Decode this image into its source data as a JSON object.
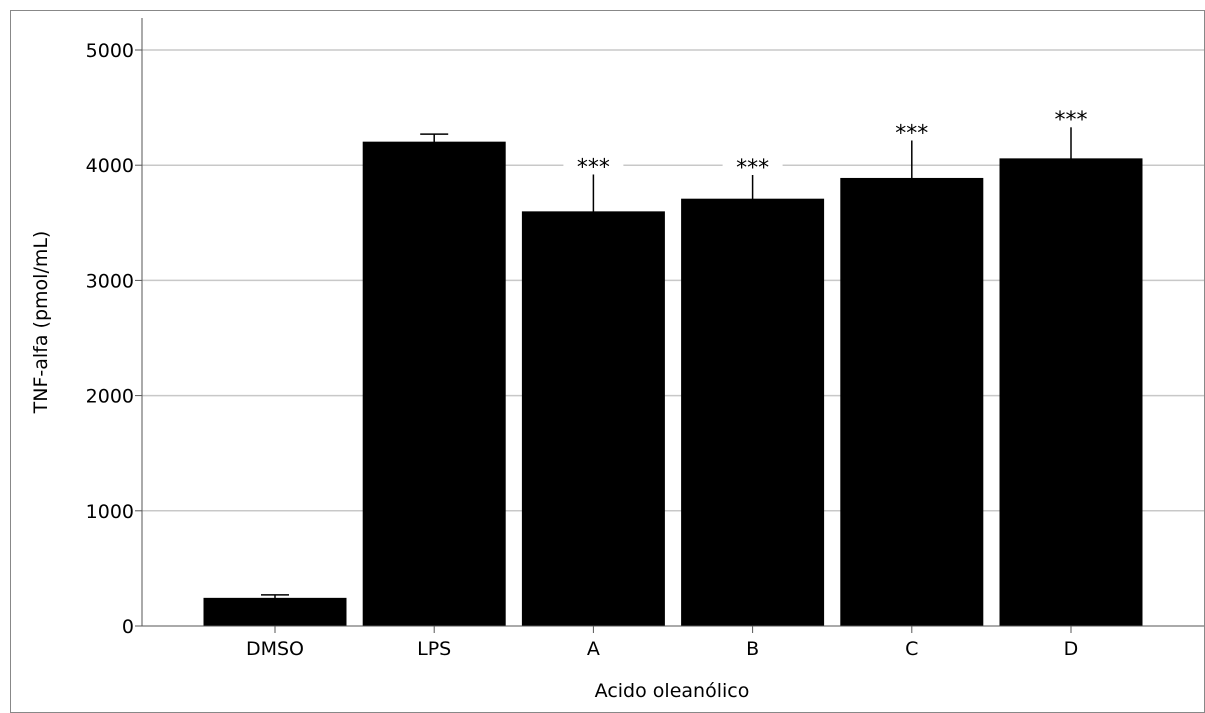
{
  "chart_data": {
    "type": "bar",
    "xlabel": "Acido oleanólico",
    "ylabel": "TNF-alfa (pmol/mL)",
    "categories": [
      "DMSO",
      "LPS",
      "A",
      "B",
      "C",
      "D"
    ],
    "values": [
      240,
      4200,
      3595,
      3705,
      3885,
      4055
    ],
    "error_upper": [
      270,
      4270,
      3920,
      3915,
      4215,
      4330
    ],
    "significance": [
      "",
      "",
      "***",
      "***",
      "***",
      "***"
    ],
    "ylim": [
      0,
      5000
    ],
    "yticks": [
      0,
      1000,
      2000,
      3000,
      4000,
      5000
    ],
    "grid": true,
    "colors": {
      "bar": "#000000",
      "grid": "#c8c8c8",
      "axis": "#555555",
      "frame": "#888888"
    }
  }
}
